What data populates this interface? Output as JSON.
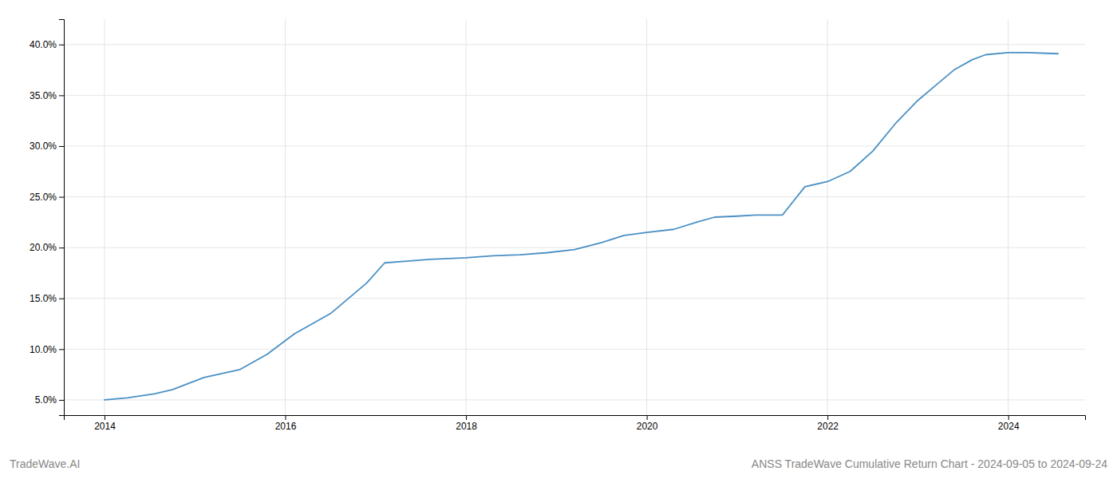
{
  "chart_data": {
    "type": "line",
    "title": "ANSS TradeWave Cumulative Return Chart - 2024-09-05 to 2024-09-24",
    "annotations": [
      "TradeWave.AI"
    ],
    "x": [
      2014.0,
      2014.25,
      2014.55,
      2014.75,
      2015.1,
      2015.5,
      2015.8,
      2016.1,
      2016.5,
      2016.9,
      2017.1,
      2017.4,
      2017.6,
      2017.75,
      2018.0,
      2018.3,
      2018.6,
      2018.9,
      2019.2,
      2019.5,
      2019.75,
      2020.0,
      2020.3,
      2020.55,
      2020.75,
      2021.0,
      2021.2,
      2021.5,
      2021.75,
      2022.0,
      2022.25,
      2022.5,
      2022.75,
      2023.0,
      2023.2,
      2023.4,
      2023.6,
      2023.75,
      2024.0,
      2024.2,
      2024.55
    ],
    "values": [
      5.0,
      5.2,
      5.6,
      6.0,
      7.2,
      8.0,
      9.5,
      11.5,
      13.5,
      16.5,
      18.5,
      18.7,
      18.85,
      18.9,
      19.0,
      19.2,
      19.3,
      19.5,
      19.8,
      20.5,
      21.2,
      21.5,
      21.8,
      22.5,
      23.0,
      23.1,
      23.2,
      23.2,
      26.0,
      26.5,
      27.5,
      29.5,
      32.2,
      34.5,
      36.0,
      37.5,
      38.5,
      39.0,
      39.2,
      39.2,
      39.1
    ],
    "color": "#4a90c4",
    "xlim": [
      2013.55,
      2024.85
    ],
    "ylim": [
      3.5,
      42.5
    ],
    "xticks": [
      2014,
      2016,
      2018,
      2020,
      2022,
      2024
    ],
    "yticks": [
      {
        "value": 5.0,
        "label": "5.0%"
      },
      {
        "value": 10.0,
        "label": "10.0%"
      },
      {
        "value": 15.0,
        "label": "15.0%"
      },
      {
        "value": 20.0,
        "label": "20.0%"
      },
      {
        "value": 25.0,
        "label": "25.0%"
      },
      {
        "value": 30.0,
        "label": "30.0%"
      },
      {
        "value": 35.0,
        "label": "35.0%"
      },
      {
        "value": 40.0,
        "label": "40.0%"
      }
    ],
    "grid": true
  }
}
